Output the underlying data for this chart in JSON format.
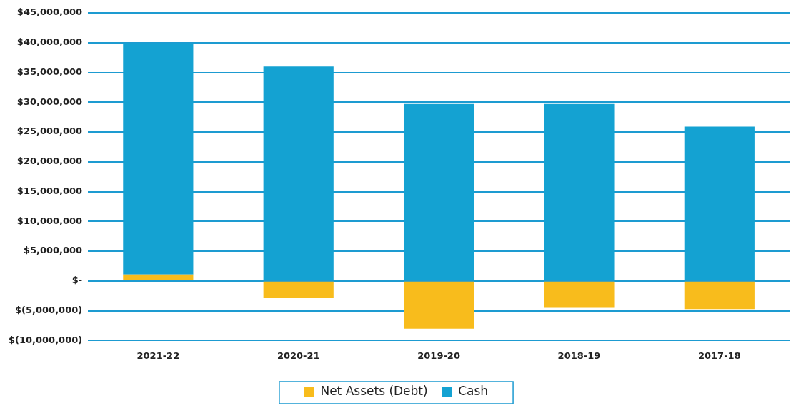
{
  "chart_data": {
    "type": "bar",
    "stacked": true,
    "categories": [
      "2021-22",
      "2020-21",
      "2019-20",
      "2018-19",
      "2017-18"
    ],
    "series": [
      {
        "name": "Net Assets (Debt)",
        "color": "#f8bc1c",
        "values": [
          1100000,
          -2900000,
          -8000000,
          -4500000,
          -4700000
        ]
      },
      {
        "name": "Cash",
        "color": "#14a2d2",
        "values": [
          38800000,
          36000000,
          29700000,
          29700000,
          25900000
        ]
      }
    ],
    "ylim": [
      -10000000,
      45000000
    ],
    "yticks": [
      {
        "value": -10000000,
        "label": "$(10,000,000)"
      },
      {
        "value": -5000000,
        "label": "$(5,000,000)"
      },
      {
        "value": 0,
        "label": "$-"
      },
      {
        "value": 5000000,
        "label": "$5,000,000"
      },
      {
        "value": 10000000,
        "label": "$10,000,000"
      },
      {
        "value": 15000000,
        "label": "$15,000,000"
      },
      {
        "value": 20000000,
        "label": "$20,000,000"
      },
      {
        "value": 25000000,
        "label": "$25,000,000"
      },
      {
        "value": 30000000,
        "label": "$30,000,000"
      },
      {
        "value": 35000000,
        "label": "$35,000,000"
      },
      {
        "value": 40000000,
        "label": "$40,000,000"
      },
      {
        "value": 45000000,
        "label": "$45,000,000"
      }
    ],
    "grid": "y",
    "legend": "bottom"
  }
}
